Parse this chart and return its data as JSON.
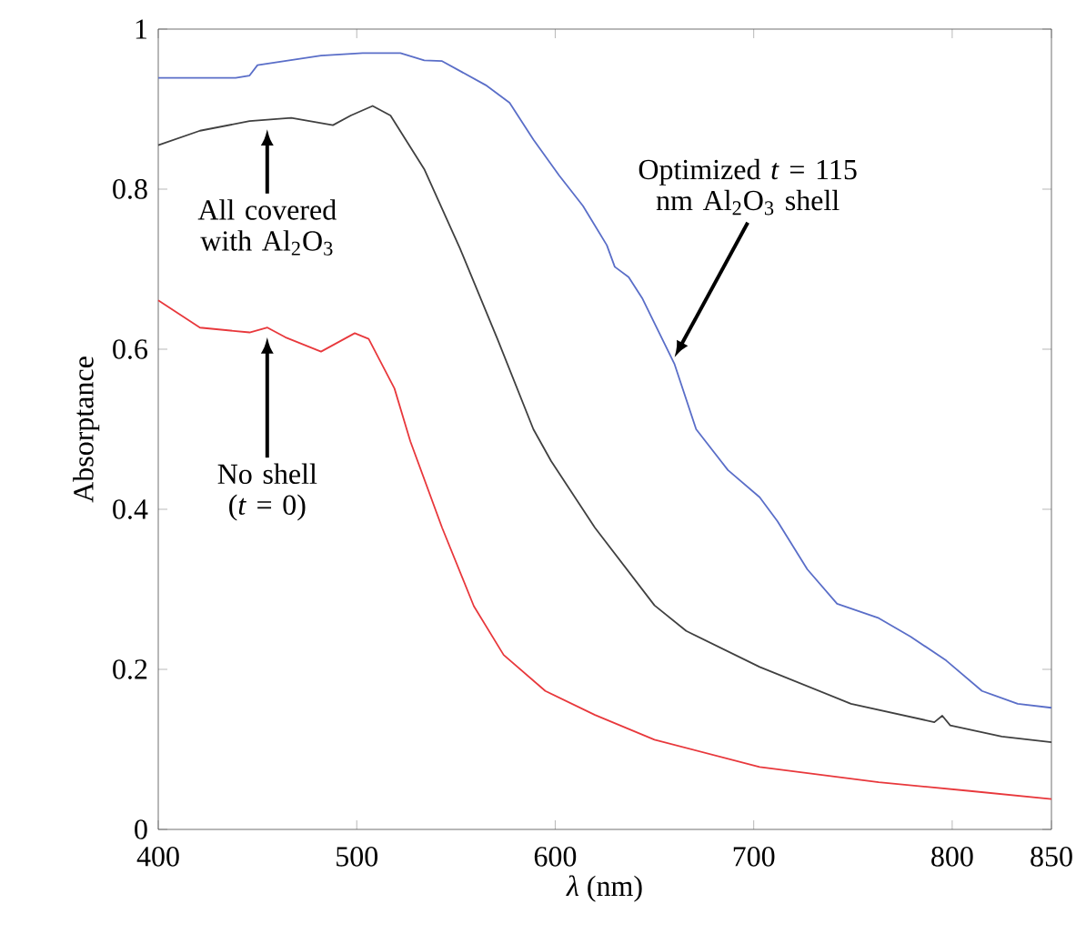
{
  "chart_data": {
    "type": "line",
    "xlabel": "*λ* (nm)",
    "ylabel": "Absorptance",
    "xlim": [
      400,
      850
    ],
    "ylim": [
      0,
      1
    ],
    "xticks": [
      400,
      500,
      600,
      700,
      800,
      850
    ],
    "yticks": [
      0,
      0.2,
      0.4,
      0.6,
      0.8,
      1
    ],
    "grid": false,
    "series": [
      {
        "color": "#5a6ec8",
        "x": [
          400,
          439,
          446,
          450,
          482,
          503,
          522,
          534,
          543,
          565,
          577,
          589,
          602,
          614,
          626,
          630,
          637,
          644,
          660,
          671,
          687,
          703,
          712,
          727,
          742,
          763,
          779,
          797,
          815,
          833,
          850
        ],
        "values": [
          0.939,
          0.939,
          0.942,
          0.955,
          0.967,
          0.97,
          0.97,
          0.961,
          0.96,
          0.93,
          0.908,
          0.862,
          0.817,
          0.779,
          0.73,
          0.703,
          0.69,
          0.663,
          0.582,
          0.5,
          0.449,
          0.415,
          0.385,
          0.325,
          0.282,
          0.264,
          0.241,
          0.211,
          0.173,
          0.157,
          0.152
        ]
      },
      {
        "color": "#404040",
        "x": [
          400,
          421,
          446,
          467,
          488,
          497,
          508,
          517,
          534,
          552,
          571,
          589,
          598,
          620,
          650,
          666,
          703,
          749,
          791,
          795,
          799,
          825,
          850
        ],
        "values": [
          0.855,
          0.873,
          0.885,
          0.889,
          0.88,
          0.892,
          0.904,
          0.892,
          0.825,
          0.726,
          0.612,
          0.5,
          0.46,
          0.377,
          0.28,
          0.248,
          0.203,
          0.157,
          0.134,
          0.142,
          0.13,
          0.116,
          0.109
        ]
      },
      {
        "color": "#e8383c",
        "x": [
          400,
          421,
          446,
          455,
          464,
          482,
          499,
          506,
          519,
          527,
          543,
          559,
          574,
          595,
          620,
          650,
          703,
          763,
          809,
          850
        ],
        "values": [
          0.661,
          0.627,
          0.621,
          0.627,
          0.615,
          0.597,
          0.62,
          0.613,
          0.551,
          0.485,
          0.377,
          0.279,
          0.218,
          0.173,
          0.143,
          0.112,
          0.078,
          0.059,
          0.048,
          0.038
        ]
      }
    ],
    "annotations": [
      "All covered with Al$_{2}$O$_{3}$",
      "No shell (*t* = 0)",
      "Optimized *t* = 115 nm Al$_{2}$O$_{3}$ shell"
    ]
  }
}
